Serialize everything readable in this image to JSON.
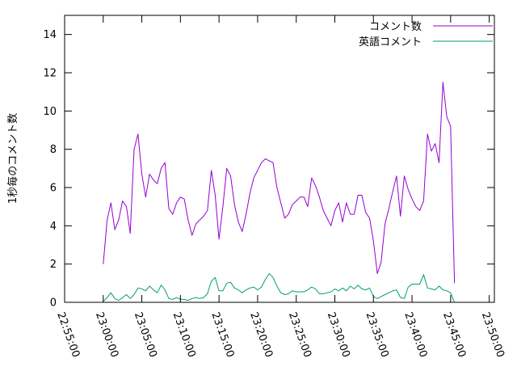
{
  "chart_data": {
    "type": "line",
    "ylabel": "1秒毎のコメント数",
    "xlim": [
      "22:55:00",
      "23:50:40"
    ],
    "ylim": [
      0,
      15
    ],
    "grid": false,
    "legend": "top-right",
    "x_ticks": [
      "22:55:00",
      "23:00:00",
      "23:05:00",
      "23:10:00",
      "23:15:00",
      "23:20:00",
      "23:25:00",
      "23:30:00",
      "23:35:00",
      "23:40:00",
      "23:45:00",
      "23:50:00"
    ],
    "y_ticks": [
      0,
      2,
      4,
      6,
      8,
      10,
      12,
      14
    ],
    "x": [
      "23:00:00",
      "23:00:30",
      "23:01:00",
      "23:01:30",
      "23:02:00",
      "23:02:30",
      "23:03:00",
      "23:03:30",
      "23:04:00",
      "23:04:30",
      "23:05:00",
      "23:05:30",
      "23:06:00",
      "23:06:30",
      "23:07:00",
      "23:07:30",
      "23:08:00",
      "23:08:30",
      "23:09:00",
      "23:09:30",
      "23:10:00",
      "23:10:30",
      "23:11:00",
      "23:11:30",
      "23:12:00",
      "23:12:30",
      "23:13:00",
      "23:13:30",
      "23:14:00",
      "23:14:30",
      "23:15:00",
      "23:15:30",
      "23:16:00",
      "23:16:30",
      "23:17:00",
      "23:17:30",
      "23:18:00",
      "23:18:30",
      "23:19:00",
      "23:19:30",
      "23:20:00",
      "23:20:30",
      "23:21:00",
      "23:21:30",
      "23:22:00",
      "23:22:30",
      "23:23:00",
      "23:23:30",
      "23:24:00",
      "23:24:30",
      "23:25:00",
      "23:25:30",
      "23:26:00",
      "23:26:30",
      "23:27:00",
      "23:27:30",
      "23:28:00",
      "23:28:30",
      "23:29:00",
      "23:29:30",
      "23:30:00",
      "23:30:30",
      "23:31:00",
      "23:31:30",
      "23:32:00",
      "23:32:30",
      "23:33:00",
      "23:33:30",
      "23:34:00",
      "23:34:30",
      "23:35:00",
      "23:35:30",
      "23:36:00",
      "23:36:30",
      "23:37:00",
      "23:37:30",
      "23:38:00",
      "23:38:30",
      "23:39:00",
      "23:39:30",
      "23:40:00",
      "23:40:30",
      "23:41:00",
      "23:41:30",
      "23:42:00",
      "23:42:30",
      "23:43:00",
      "23:43:30",
      "23:44:00",
      "23:44:30",
      "23:45:00",
      "23:45:30"
    ],
    "series": [
      {
        "name": "コメント数",
        "color": "#9400d3",
        "values": [
          2.0,
          4.3,
          5.2,
          3.8,
          4.3,
          5.3,
          5.0,
          3.6,
          8.0,
          8.8,
          6.7,
          5.5,
          6.7,
          6.4,
          6.2,
          7.0,
          7.3,
          4.9,
          4.6,
          5.2,
          5.5,
          5.4,
          4.3,
          3.5,
          4.1,
          4.3,
          4.5,
          4.8,
          6.9,
          5.6,
          3.3,
          5.0,
          7.0,
          6.6,
          5.1,
          4.2,
          3.7,
          4.6,
          5.7,
          6.5,
          6.9,
          7.3,
          7.5,
          7.4,
          7.3,
          6.0,
          5.2,
          4.4,
          4.6,
          5.1,
          5.3,
          5.5,
          5.5,
          5.0,
          6.5,
          6.1,
          5.5,
          4.8,
          4.4,
          4.0,
          4.8,
          5.2,
          4.2,
          5.2,
          4.6,
          4.6,
          5.6,
          5.6,
          4.7,
          4.4,
          3.2,
          1.5,
          2.1,
          4.1,
          4.9,
          5.8,
          6.6,
          4.5,
          6.6,
          5.9,
          5.4,
          5.0,
          4.8,
          5.3,
          8.8,
          7.9,
          8.3,
          7.3,
          11.5,
          9.7,
          9.2,
          1.0
        ]
      },
      {
        "name": "英語コメント",
        "color": "#009e73",
        "values": [
          0.05,
          0.25,
          0.5,
          0.2,
          0.1,
          0.25,
          0.4,
          0.2,
          0.4,
          0.75,
          0.7,
          0.6,
          0.85,
          0.65,
          0.5,
          0.9,
          0.65,
          0.2,
          0.15,
          0.25,
          0.15,
          0.15,
          0.1,
          0.2,
          0.25,
          0.2,
          0.25,
          0.45,
          1.1,
          1.3,
          0.6,
          0.6,
          1.0,
          1.05,
          0.75,
          0.65,
          0.5,
          0.65,
          0.75,
          0.8,
          0.65,
          0.8,
          1.2,
          1.5,
          1.3,
          0.85,
          0.5,
          0.4,
          0.45,
          0.6,
          0.55,
          0.55,
          0.55,
          0.65,
          0.8,
          0.7,
          0.45,
          0.45,
          0.5,
          0.55,
          0.7,
          0.6,
          0.75,
          0.6,
          0.85,
          0.7,
          0.9,
          0.7,
          0.65,
          0.75,
          0.3,
          0.2,
          0.3,
          0.4,
          0.5,
          0.6,
          0.65,
          0.25,
          0.2,
          0.8,
          0.95,
          0.95,
          0.95,
          1.45,
          0.75,
          0.7,
          0.65,
          0.85,
          0.65,
          0.6,
          0.5,
          0.0
        ]
      }
    ]
  }
}
